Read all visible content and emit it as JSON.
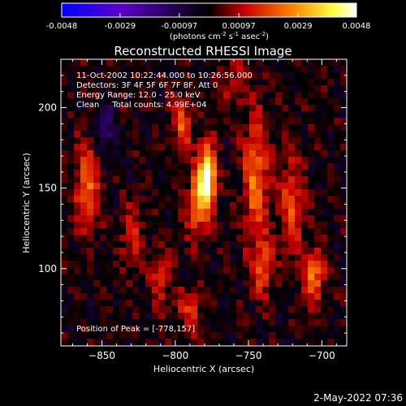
{
  "colorbar": {
    "tick_labels": [
      "-0.0048",
      "-0.0029",
      "-0.00097",
      "0.00097",
      "0.0029",
      "0.0048"
    ],
    "tick_values": [
      -0.0048,
      -0.0029,
      -0.00097,
      0.00097,
      0.0029,
      0.0048
    ],
    "range": [
      -0.0048,
      0.0048
    ],
    "units_prefix": "(photons cm",
    "units_exp1": "-2",
    "units_mid": " s",
    "units_exp2": "-1",
    "units_mid2": " asec",
    "units_exp3": "-2",
    "units_suffix": ")",
    "colors": [
      "#0000ff",
      "#5a00c8",
      "#000000",
      "#c80000",
      "#ff8000",
      "#ffff40",
      "#ffffff"
    ]
  },
  "chart_data": {
    "type": "heatmap",
    "title": "Reconstructed RHESSI Image",
    "xlabel": "Heliocentric X (arcsec)",
    "ylabel": "Heliocentric Y (arcsec)",
    "xlim": [
      -878,
      -683
    ],
    "ylim": [
      52,
      230
    ],
    "xticks": [
      -850,
      -800,
      -750,
      -700
    ],
    "xtick_labels": [
      "−850",
      "−800",
      "−750",
      "−700"
    ],
    "yticks": [
      100,
      150,
      200
    ],
    "ytick_labels": [
      "100",
      "150",
      "200"
    ],
    "annotations": [
      "11-Oct-2002 10:22:44.000 to 10:26:56.000",
      "Detectors: 3F 4F 5F 6F 7F 8F, Att 0",
      "Energy Range: 12.0 - 25.0 keV",
      "Clean     Total counts: 4.99E+04"
    ],
    "peak_label": "Position of Peak = [-778,157]",
    "peak": [
      -778,
      157
    ],
    "sources": [
      {
        "x": -778,
        "y": 157,
        "amp": 1.0,
        "sx": 4,
        "sy": 13
      },
      {
        "x": -785,
        "y": 140,
        "amp": 0.45,
        "sx": 5,
        "sy": 16
      },
      {
        "x": -795,
        "y": 190,
        "amp": 0.4,
        "sx": 5,
        "sy": 12
      },
      {
        "x": -745,
        "y": 155,
        "amp": 0.5,
        "sx": 6,
        "sy": 28
      },
      {
        "x": -740,
        "y": 100,
        "amp": 0.35,
        "sx": 5,
        "sy": 12
      },
      {
        "x": -720,
        "y": 140,
        "amp": 0.4,
        "sx": 6,
        "sy": 22
      },
      {
        "x": -705,
        "y": 95,
        "amp": 0.5,
        "sx": 5,
        "sy": 12
      },
      {
        "x": -860,
        "y": 150,
        "amp": 0.45,
        "sx": 6,
        "sy": 20
      },
      {
        "x": -830,
        "y": 120,
        "amp": 0.3,
        "sx": 5,
        "sy": 14
      },
      {
        "x": -810,
        "y": 95,
        "amp": 0.3,
        "sx": 5,
        "sy": 12
      },
      {
        "x": -790,
        "y": 75,
        "amp": 0.3,
        "sx": 6,
        "sy": 10
      },
      {
        "x": -760,
        "y": 215,
        "amp": 0.25,
        "sx": 6,
        "sy": 10
      },
      {
        "x": -848,
        "y": 185,
        "amp": -0.28,
        "sx": 5,
        "sy": 12
      }
    ]
  },
  "footer": {
    "timestamp": "2-May-2022 07:36"
  }
}
